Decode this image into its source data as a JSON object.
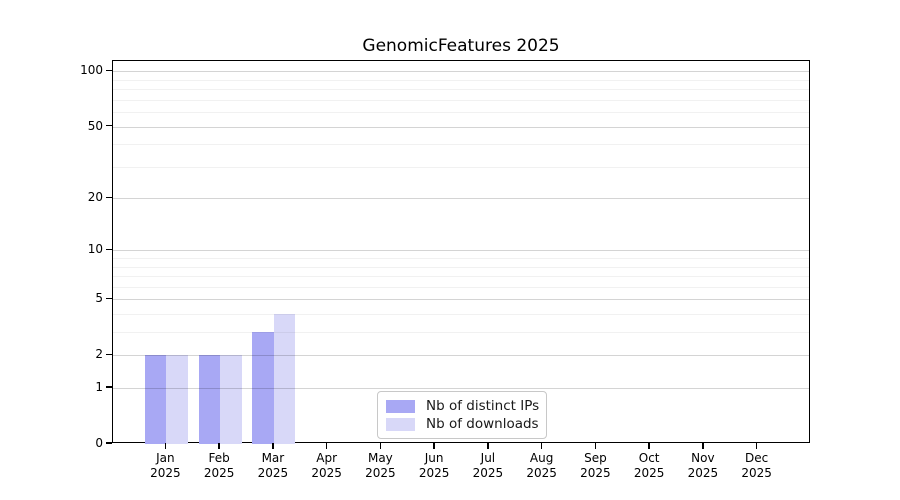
{
  "figure": {
    "title": "GenomicFeatures 2025"
  },
  "chart_data": {
    "type": "bar",
    "title": "GenomicFeatures 2025",
    "xlabel": "",
    "ylabel": "",
    "categories": [
      "Jan",
      "Feb",
      "Mar",
      "Apr",
      "May",
      "Jun",
      "Jul",
      "Aug",
      "Sep",
      "Oct",
      "Nov",
      "Dec"
    ],
    "category_year": "2025",
    "series": [
      {
        "name": "Nb of distinct IPs",
        "color": "#a8a8f4",
        "values": [
          2,
          2,
          3,
          0,
          0,
          0,
          0,
          0,
          0,
          0,
          0,
          0
        ]
      },
      {
        "name": "Nb of downloads",
        "color": "#d8d8f8",
        "values": [
          2,
          2,
          4,
          0,
          0,
          0,
          0,
          0,
          0,
          0,
          0,
          0
        ]
      }
    ],
    "yscale": "log1p",
    "ylim": [
      0,
      114
    ],
    "y_ticks": [
      0,
      1,
      2,
      5,
      10,
      20,
      50,
      100
    ],
    "y_gridlines_major": [
      1,
      2,
      5,
      10,
      20,
      50,
      100
    ],
    "y_gridlines_minor": [
      3,
      4,
      6,
      7,
      8,
      9,
      30,
      40,
      60,
      70,
      80,
      90
    ],
    "grid": true,
    "legend_position": "lower center-right inside plot"
  }
}
